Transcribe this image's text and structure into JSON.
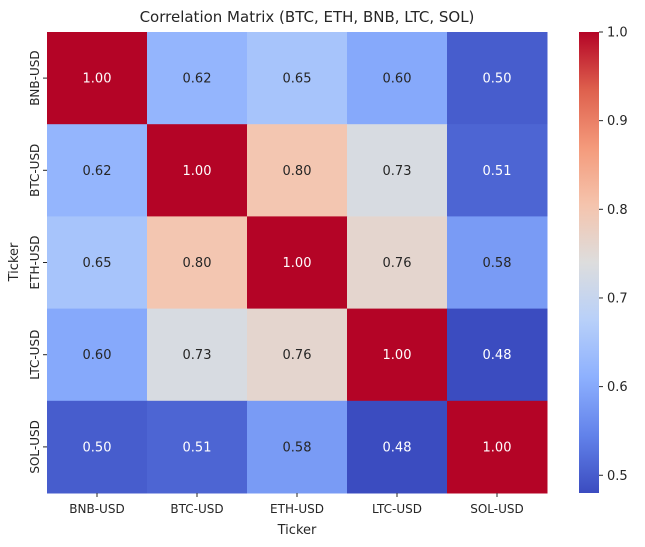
{
  "chart_data": {
    "type": "heatmap",
    "title": "Correlation Matrix (BTC, ETH, BNB, LTC, SOL)",
    "xlabel": "Ticker",
    "ylabel": "Ticker",
    "x_categories": [
      "BNB-USD",
      "BTC-USD",
      "ETH-USD",
      "LTC-USD",
      "SOL-USD"
    ],
    "y_categories": [
      "BNB-USD",
      "BTC-USD",
      "ETH-USD",
      "LTC-USD",
      "SOL-USD"
    ],
    "values": [
      [
        1.0,
        0.62,
        0.65,
        0.6,
        0.5
      ],
      [
        0.62,
        1.0,
        0.8,
        0.73,
        0.51
      ],
      [
        0.65,
        0.8,
        1.0,
        0.76,
        0.58
      ],
      [
        0.6,
        0.73,
        0.76,
        1.0,
        0.48
      ],
      [
        0.5,
        0.51,
        0.58,
        0.48,
        1.0
      ]
    ],
    "colormap": "coolwarm",
    "color_range": [
      0.48,
      1.0
    ],
    "colorbar_ticks": [
      "0.5",
      "0.6",
      "0.7",
      "0.8",
      "0.9",
      "1.0"
    ],
    "legend_placement": "right"
  }
}
